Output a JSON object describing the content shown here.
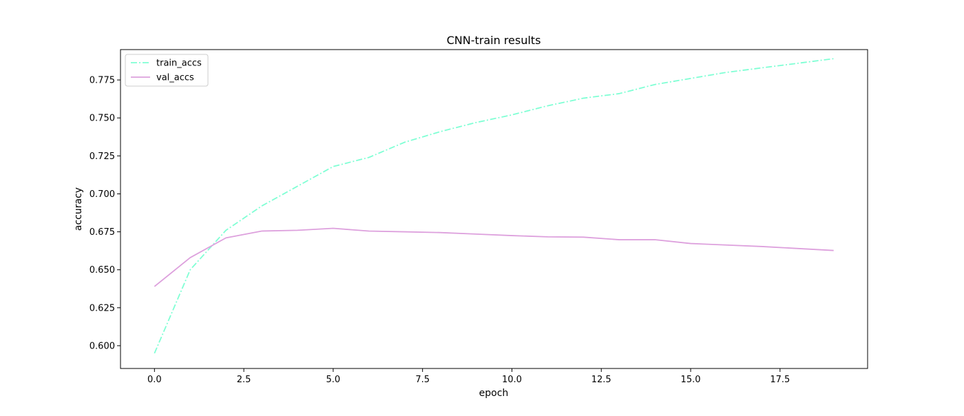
{
  "chart_data": {
    "type": "line",
    "title": "CNN-train results",
    "xlabel": "epoch",
    "ylabel": "accuracy",
    "xlim": [
      -0.95,
      19.95
    ],
    "ylim": [
      0.585,
      0.795
    ],
    "x": [
      0,
      1,
      2,
      3,
      4,
      5,
      6,
      7,
      8,
      9,
      10,
      11,
      12,
      13,
      14,
      15,
      16,
      17,
      18,
      19
    ],
    "xticks": [
      0.0,
      2.5,
      5.0,
      7.5,
      10.0,
      12.5,
      15.0,
      17.5
    ],
    "xtick_labels": [
      "0.0",
      "2.5",
      "5.0",
      "7.5",
      "10.0",
      "12.5",
      "15.0",
      "17.5"
    ],
    "yticks": [
      0.6,
      0.625,
      0.65,
      0.675,
      0.7,
      0.725,
      0.75,
      0.775
    ],
    "ytick_labels": [
      "0.600",
      "0.625",
      "0.650",
      "0.675",
      "0.700",
      "0.725",
      "0.750",
      "0.775"
    ],
    "grid": false,
    "legend_position": "top-left",
    "series": [
      {
        "name": "train_accs",
        "color": "#7fffd4",
        "linestyle": "dashdot",
        "values": [
          0.595,
          0.65,
          0.676,
          0.692,
          0.705,
          0.718,
          0.724,
          0.734,
          0.741,
          0.747,
          0.752,
          0.758,
          0.763,
          0.766,
          0.772,
          0.776,
          0.78,
          0.783,
          0.786,
          0.789
        ]
      },
      {
        "name": "val_accs",
        "color": "#dda0dd",
        "linestyle": "solid",
        "values": [
          0.639,
          0.658,
          0.671,
          0.6755,
          0.676,
          0.6773,
          0.6755,
          0.675,
          0.6745,
          0.6735,
          0.6725,
          0.6717,
          0.6715,
          0.6698,
          0.6698,
          0.6673,
          0.6663,
          0.6653,
          0.664,
          0.6627
        ]
      }
    ]
  }
}
